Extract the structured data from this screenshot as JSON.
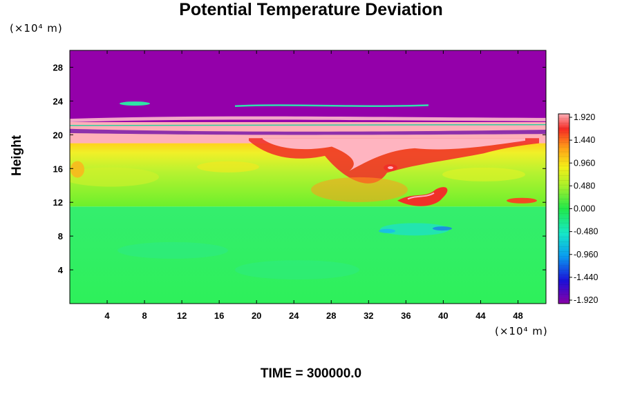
{
  "chart_data": {
    "type": "heatmap",
    "title": "Potential Temperature Deviation",
    "ylabel": "Height",
    "xlabel": "",
    "x_unit_label": "(×10⁴ m)",
    "y_unit_label": "(×10⁴ m)",
    "footer": "TIME = 300000.0",
    "xlim": [
      0,
      51
    ],
    "ylim": [
      0,
      30
    ],
    "x_ticks": [
      4,
      8,
      12,
      16,
      20,
      24,
      28,
      32,
      36,
      40,
      44,
      48
    ],
    "y_ticks": [
      4,
      8,
      12,
      16,
      20,
      24,
      28
    ],
    "colorbar": {
      "min": -1.92,
      "max": 1.92,
      "ticks": [
        "1.920",
        "1.440",
        "0.960",
        "0.480",
        "0.000",
        "-0.480",
        "-0.960",
        "-1.440",
        "-1.920"
      ]
    },
    "regions": [
      {
        "y_range": [
          0,
          11.5
        ],
        "value": -0.2,
        "description": "lower layer near zero deviation"
      },
      {
        "y_range": [
          11.5,
          19
        ],
        "value": 0.6,
        "description": "mid layer positive deviation"
      },
      {
        "y_range": [
          19,
          21.5
        ],
        "value": 1.92,
        "description": "stable layer with strong positive deviation"
      },
      {
        "y_range": [
          21.5,
          30
        ],
        "value": -1.92,
        "description": "upper layer strong negative deviation"
      }
    ]
  }
}
